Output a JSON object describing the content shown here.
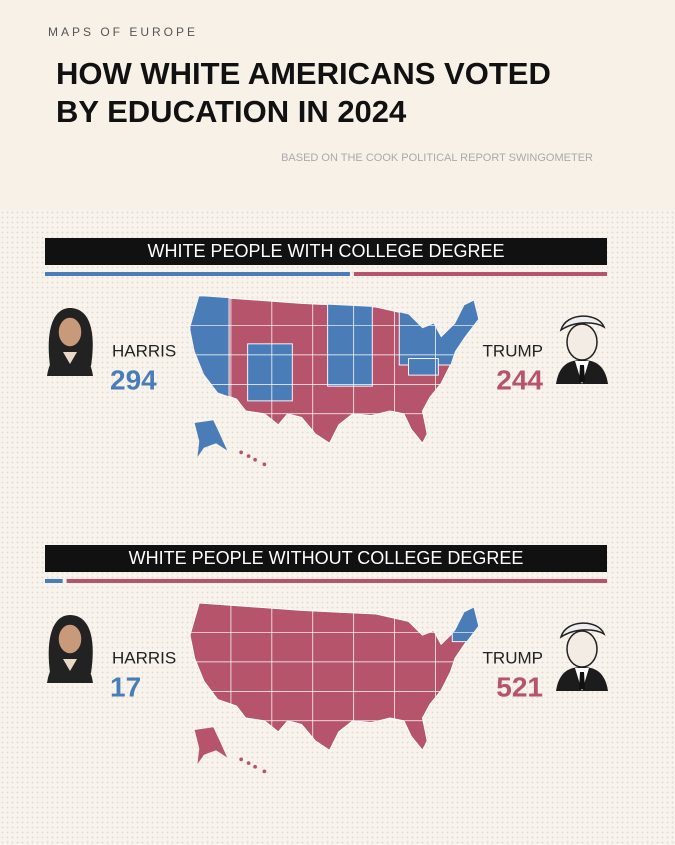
{
  "header": {
    "brand": "MAPS OF EUROPE",
    "title": [
      "HOW WHITE AMERICANS VOTED",
      "BY EDUCATION IN 2024"
    ],
    "subtitle": "BASED ON THE COOK POLITICAL REPORT SWINGOMETER"
  },
  "panels": [
    {
      "title": "WHITE PEOPLE WITH COLLEGE DEGREE",
      "candidates": [
        {
          "name": "HARRIS",
          "votes": 294,
          "color": "#4a7db8"
        },
        {
          "name": "TRUMP",
          "votes": 244,
          "color": "#b5546a"
        }
      ]
    },
    {
      "title": "WHITE PEOPLE WITHOUT COLLEGE DEGREE",
      "candidates": [
        {
          "name": "HARRIS",
          "votes": 17,
          "color": "#4a7db8"
        },
        {
          "name": "TRUMP",
          "votes": 521,
          "color": "#b5546a"
        }
      ]
    }
  ]
}
